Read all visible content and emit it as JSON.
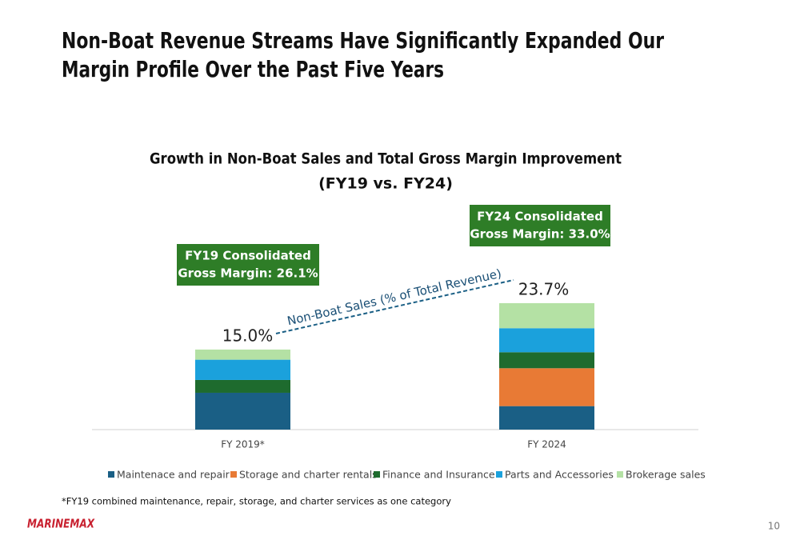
{
  "slide_title": [
    "Non-Boat Revenue Streams Have Significantly Expanded Our",
    "Margin Profile Over the Past Five Years"
  ],
  "chart_data": {
    "type": "bar",
    "stacked": true,
    "title": "Growth in Non-Boat Sales and Total Gross Margin Improvement",
    "subtitle": "(FY19 vs. FY24)",
    "categories": [
      "FY 2019*",
      "FY 2024"
    ],
    "series": [
      {
        "name": "Maintenace and repair",
        "color": "#1a5f85",
        "values": [
          6.9,
          4.4
        ]
      },
      {
        "name": "Storage and charter rentals",
        "color": "#e87a35",
        "values": [
          0,
          7.1
        ]
      },
      {
        "name": "Finance and Insurance",
        "color": "#1e6b2e",
        "values": [
          2.4,
          3.0
        ]
      },
      {
        "name": "Parts and Accessories",
        "color": "#1ba1dc",
        "values": [
          3.8,
          4.5
        ]
      },
      {
        "name": "Brokerage sales",
        "color": "#b4e1a4",
        "values": [
          1.9,
          4.7
        ]
      }
    ],
    "totals": [
      15.0,
      23.7
    ],
    "total_labels": [
      "15.0%",
      "23.7%"
    ],
    "trend_label": "Non-Boat Sales (% of Total Revenue)",
    "annotations": [
      {
        "lines": [
          "FY19 Consolidated",
          "Gross Margin: 26.1%"
        ],
        "color": "#2e7d27"
      },
      {
        "lines": [
          "FY24 Consolidated",
          "Gross Margin: 33.0%"
        ],
        "color": "#2e7d27"
      }
    ]
  },
  "footnote": "*FY19 combined maintenance, repair, storage, and charter services as one category",
  "logo": "MARINEMAX",
  "page_number": 10
}
